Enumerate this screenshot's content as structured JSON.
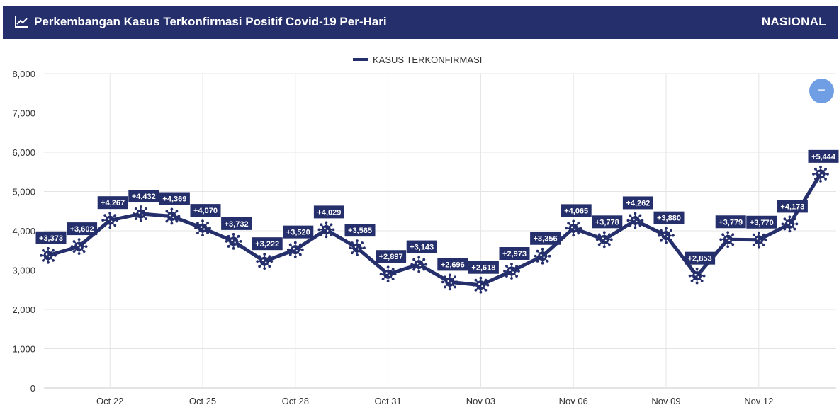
{
  "header": {
    "title": "Perkembangan Kasus Terkonfirmasi Positif Covid-19 Per-Hari",
    "region": "NASIONAL",
    "icon": "line-chart-icon",
    "bg_color": "#252f6b"
  },
  "zoom_button": {
    "label": "−",
    "icon": "minus-icon",
    "color": "#6f9ee4"
  },
  "chart_data": {
    "type": "line",
    "title": "",
    "xlabel": "",
    "ylabel": "",
    "ylim": [
      0,
      8000
    ],
    "yticks": [
      0,
      1000,
      2000,
      3000,
      4000,
      5000,
      6000,
      7000,
      8000
    ],
    "ytick_labels": [
      "0",
      "1,000",
      "2,000",
      "3,000",
      "4,000",
      "5,000",
      "6,000",
      "7,000",
      "8,000"
    ],
    "grid": true,
    "legend_position": "top-center",
    "series_color": "#252f6b",
    "x_tick_labels": [
      {
        "index": 2,
        "label": "Oct 22"
      },
      {
        "index": 5,
        "label": "Oct 25"
      },
      {
        "index": 8,
        "label": "Oct 28"
      },
      {
        "index": 11,
        "label": "Oct 31"
      },
      {
        "index": 14,
        "label": "Nov 03"
      },
      {
        "index": 17,
        "label": "Nov 06"
      },
      {
        "index": 20,
        "label": "Nov 09"
      },
      {
        "index": 23,
        "label": "Nov 12"
      }
    ],
    "series": [
      {
        "name": "KASUS TERKONFIRMASI",
        "values": [
          3373,
          3602,
          4267,
          4432,
          4369,
          4070,
          3732,
          3222,
          3520,
          4029,
          3565,
          2897,
          3143,
          2696,
          2618,
          2973,
          3356,
          4065,
          3778,
          4262,
          3880,
          2853,
          3779,
          3770,
          4173,
          5444
        ],
        "labels": [
          "+3,373",
          "+3,602",
          "+4,267",
          "+4,432",
          "+4,369",
          "+4,070",
          "+3,732",
          "+3,222",
          "+3,520",
          "+4,029",
          "+3,565",
          "+2,897",
          "+3,143",
          "+2,696",
          "+2,618",
          "+2,973",
          "+3,356",
          "+4,065",
          "+3,778",
          "+4,262",
          "+3,880",
          "+2,853",
          "+3,779",
          "+3,770",
          "+4,173",
          "+5,444"
        ]
      }
    ]
  }
}
